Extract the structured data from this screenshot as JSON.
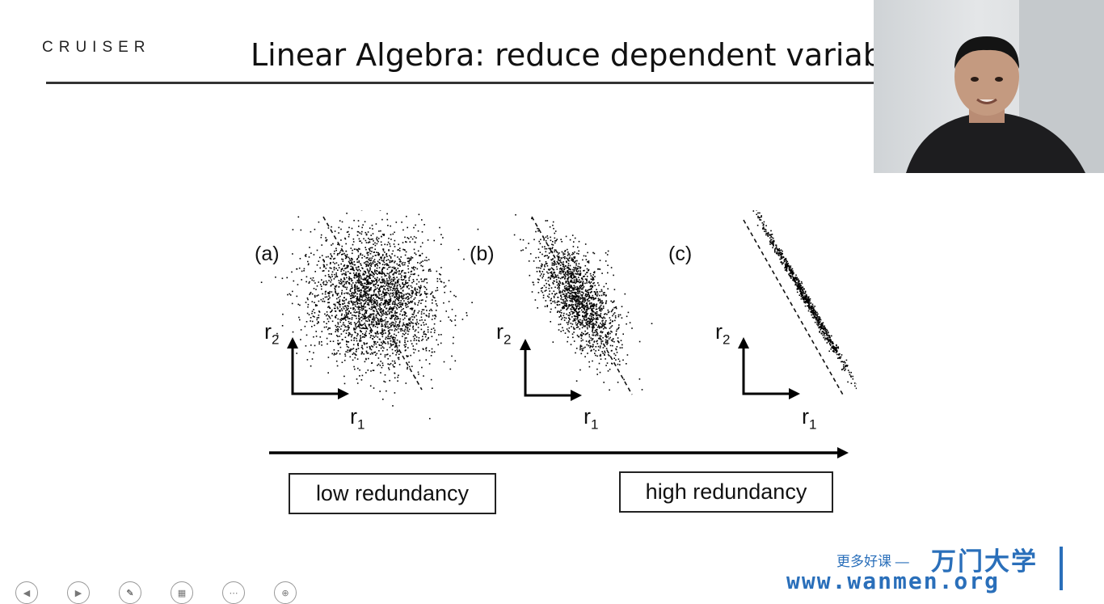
{
  "header": {
    "logo_text": "CRUISER",
    "title": "Linear Algebra: reduce dependent variable"
  },
  "figure": {
    "panels": [
      {
        "label": "(a)",
        "x_axis": "r",
        "x_sub": "1",
        "y_axis": "r",
        "y_sub": "2"
      },
      {
        "label": "(b)",
        "x_axis": "r",
        "x_sub": "1",
        "y_axis": "r",
        "y_sub": "2"
      },
      {
        "label": "(c)",
        "x_axis": "r",
        "x_sub": "1",
        "y_axis": "r",
        "y_sub": "2"
      }
    ],
    "low_label": "low redundancy",
    "high_label": "high redundancy"
  },
  "promo": {
    "tagline": "更多好课 —",
    "brand": "万门大学",
    "url": "www.wanmen.org"
  },
  "presenter": {
    "description_icon": "webcam-person-icon"
  },
  "controls": {
    "icons": [
      "prev-icon",
      "play-icon",
      "pen-icon",
      "grid-icon",
      "more-icon",
      "zoom-icon"
    ]
  },
  "colors": {
    "accent": "#2a6fba",
    "text": "#111111"
  }
}
